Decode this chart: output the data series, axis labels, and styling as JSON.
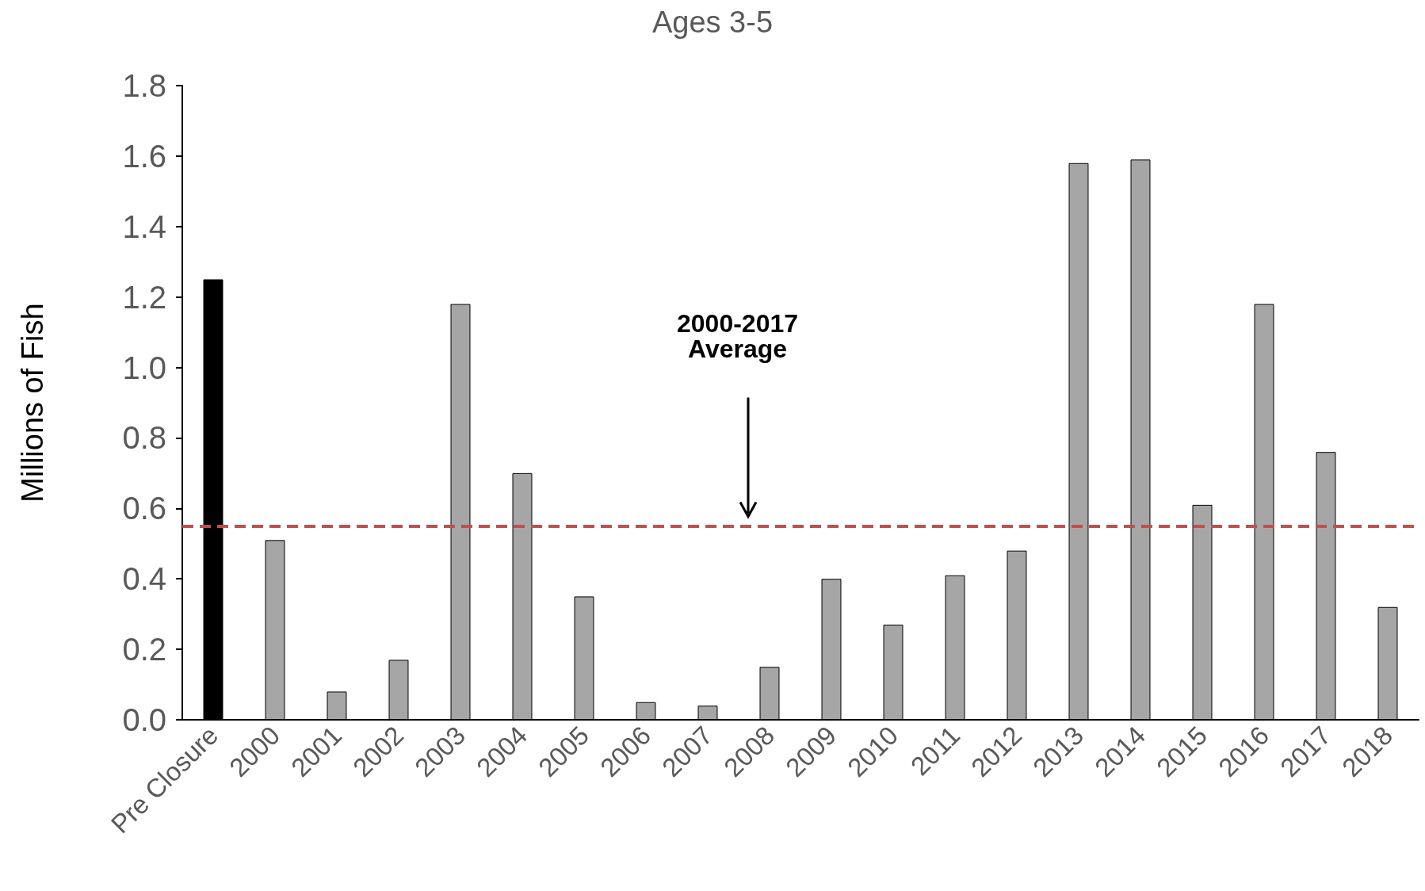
{
  "chart_data": {
    "type": "bar",
    "title": "Ages 3-5",
    "ylabel": "Millions of Fish",
    "categories": [
      "Pre Closure",
      "2000",
      "2001",
      "2002",
      "2003",
      "2004",
      "2005",
      "2006",
      "2007",
      "2008",
      "2009",
      "2010",
      "2011",
      "2012",
      "2013",
      "2014",
      "2015",
      "2016",
      "2017",
      "2018"
    ],
    "values": [
      1.25,
      0.51,
      0.08,
      0.17,
      1.18,
      0.7,
      0.35,
      0.05,
      0.04,
      0.15,
      0.4,
      0.27,
      0.41,
      0.48,
      1.58,
      1.59,
      0.61,
      1.18,
      0.76,
      0.32
    ],
    "colors": [
      "#000000",
      "#a6a6a6",
      "#a6a6a6",
      "#a6a6a6",
      "#a6a6a6",
      "#a6a6a6",
      "#a6a6a6",
      "#a6a6a6",
      "#a6a6a6",
      "#a6a6a6",
      "#a6a6a6",
      "#a6a6a6",
      "#a6a6a6",
      "#a6a6a6",
      "#a6a6a6",
      "#a6a6a6",
      "#a6a6a6",
      "#a6a6a6",
      "#a6a6a6",
      "#a6a6a6"
    ],
    "ylim": [
      0,
      1.8
    ],
    "yticks": [
      {
        "value": 0,
        "label": "0.0"
      },
      {
        "value": 0.2,
        "label": "0.2"
      },
      {
        "value": 0.4,
        "label": "0.4"
      },
      {
        "value": 0.6,
        "label": "0.6"
      },
      {
        "value": 0.8,
        "label": "0.8"
      },
      {
        "value": 1.0,
        "label": "1.0"
      },
      {
        "value": 1.2,
        "label": "1.2"
      },
      {
        "value": 1.4,
        "label": "1.4"
      },
      {
        "value": 1.6,
        "label": "1.6"
      },
      {
        "value": 1.8,
        "label": "1.8"
      }
    ],
    "ref_lines": [
      {
        "axis": "y",
        "value": 0.55,
        "color": "#c0504d",
        "line_style": "dashed"
      }
    ],
    "annotations": [
      "2000-2017\nAverage"
    ],
    "grid": false
  }
}
